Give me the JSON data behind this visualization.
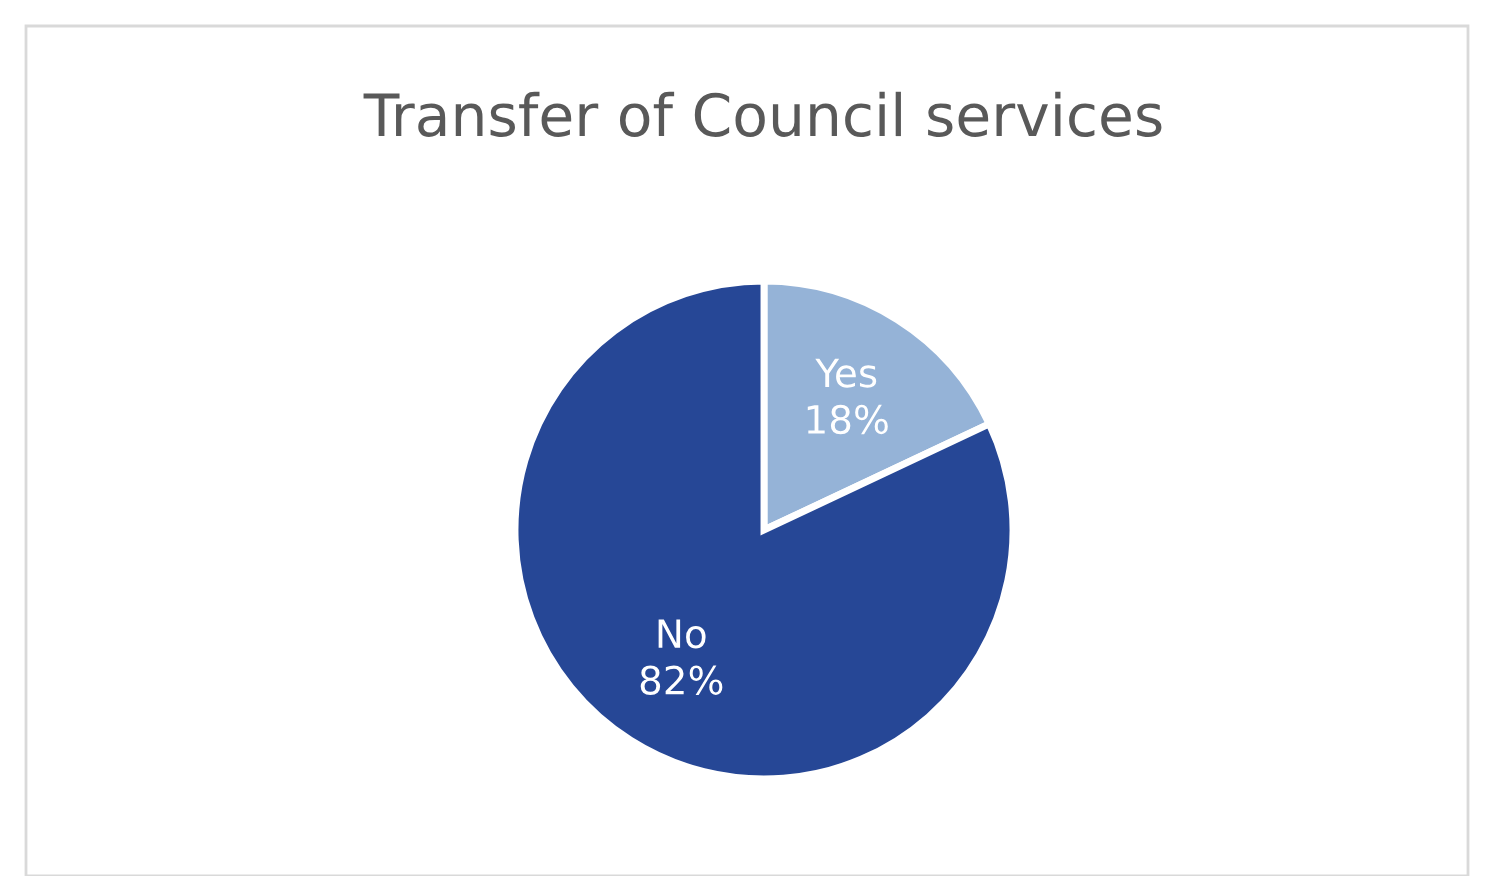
{
  "chart_data": {
    "type": "pie",
    "title": "Transfer of Council services",
    "categories": [
      "Yes",
      "No"
    ],
    "values": [
      18,
      82
    ],
    "colors": [
      "#95b3d7",
      "#264796"
    ],
    "value_labels": [
      "18%",
      "82%"
    ]
  }
}
